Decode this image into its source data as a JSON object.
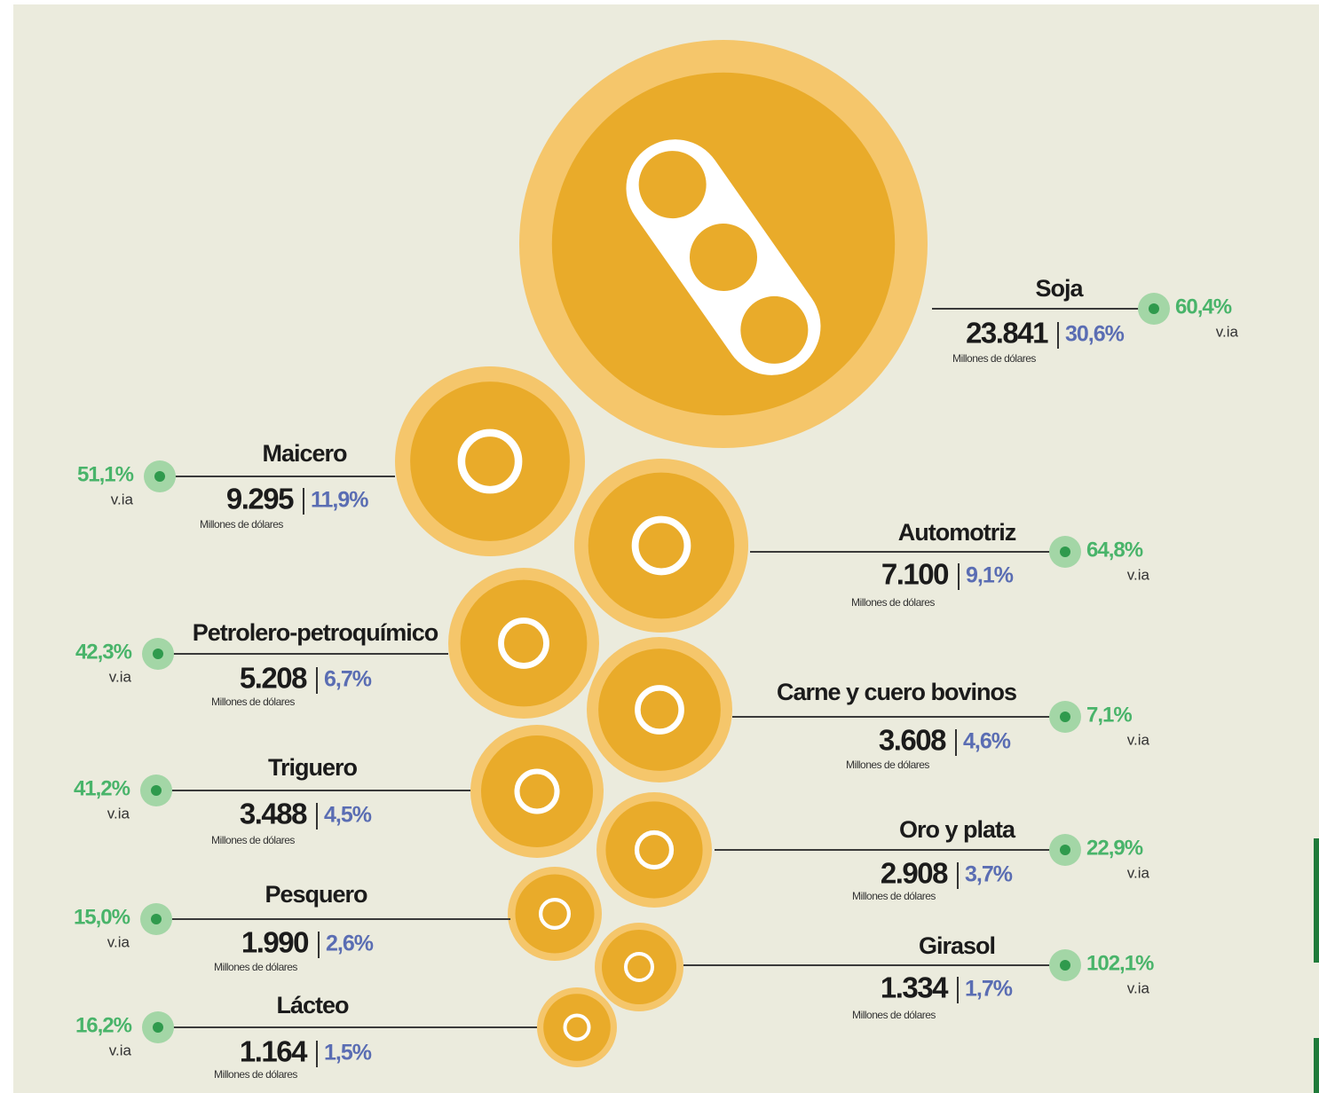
{
  "unit_label": "Millones de dólares",
  "growth_label": "v.ia",
  "items": [
    {
      "name": "Soja",
      "value": "23.841",
      "share": "30,6%",
      "growth": "60,4%"
    },
    {
      "name": "Maicero",
      "value": "9.295",
      "share": "11,9%",
      "growth": "51,1%"
    },
    {
      "name": "Automotriz",
      "value": "7.100",
      "share": "9,1%",
      "growth": "64,8%"
    },
    {
      "name": "Petrolero-petroquímico",
      "value": "5.208",
      "share": "6,7%",
      "growth": "42,3%"
    },
    {
      "name": "Carne y cuero bovinos",
      "value": "3.608",
      "share": "4,6%",
      "growth": "7,1%"
    },
    {
      "name": "Triguero",
      "value": "3.488",
      "share": "4,5%",
      "growth": "41,2%"
    },
    {
      "name": "Oro y plata",
      "value": "2.908",
      "share": "3,7%",
      "growth": "22,9%"
    },
    {
      "name": "Pesquero",
      "value": "1.990",
      "share": "2,6%",
      "growth": "15,0%"
    },
    {
      "name": "Girasol",
      "value": "1.334",
      "share": "1,7%",
      "growth": "102,1%"
    },
    {
      "name": "Lácteo",
      "value": "1.164",
      "share": "1,5%",
      "growth": "16,2%"
    }
  ]
}
